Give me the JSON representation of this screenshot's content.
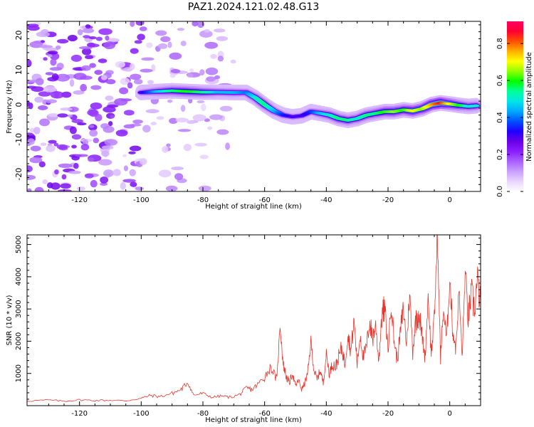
{
  "title": "PAZ1.2024.121.02.48.G13",
  "chart_data": [
    {
      "type": "heatmap",
      "title": "PAZ1.2024.121.02.48.G13",
      "xlabel": "Height of straight line (km)",
      "ylabel": "Frequency (Hz)",
      "xlim": [
        -137,
        10
      ],
      "ylim": [
        -25,
        24
      ],
      "x_ticks": [
        -120,
        -100,
        -80,
        -60,
        -40,
        -20,
        0
      ],
      "y_ticks": [
        -20,
        -10,
        0,
        10,
        20
      ],
      "colorbar": {
        "label": "Normalized spectral amplitude",
        "range": [
          0,
          0.92
        ],
        "ticks": [
          0.0,
          0.2,
          0.4,
          0.6,
          0.8
        ],
        "colormap": [
          "#ffffff",
          "#e9d4ff",
          "#c9a0ff",
          "#a960ff",
          "#8a1eff",
          "#6a00e6",
          "#2000ff",
          "#0050ff",
          "#00a8ff",
          "#00e6e6",
          "#00ff9a",
          "#00ff00",
          "#90ff00",
          "#ffff00",
          "#ffb000",
          "#ff5000",
          "#ff0030",
          "#ff0060"
        ]
      },
      "ridge": {
        "x": [
          -100,
          -95,
          -90,
          -85,
          -80,
          -75,
          -70,
          -66,
          -63,
          -60,
          -57,
          -54,
          -51,
          -48,
          -45,
          -42,
          -39,
          -36,
          -33,
          -30,
          -27,
          -24,
          -21,
          -18,
          -15,
          -12,
          -9,
          -6,
          -3,
          0,
          3,
          6,
          9
        ],
        "y": [
          3.5,
          3.8,
          4.0,
          3.8,
          3.6,
          3.6,
          3.5,
          3.5,
          2.0,
          0.0,
          -1.8,
          -3.0,
          -3.5,
          -3.2,
          -2.0,
          -2.5,
          -3.0,
          -4.0,
          -4.5,
          -4.0,
          -3.0,
          -2.5,
          -2.0,
          -2.0,
          -1.5,
          -1.8,
          -1.2,
          0.0,
          0.5,
          0.2,
          -0.2,
          -0.5,
          -0.3
        ],
        "amplitude": [
          0.3,
          0.45,
          0.55,
          0.6,
          0.55,
          0.45,
          0.45,
          0.4,
          0.5,
          0.55,
          0.45,
          0.35,
          0.3,
          0.3,
          0.35,
          0.45,
          0.5,
          0.55,
          0.55,
          0.5,
          0.55,
          0.55,
          0.6,
          0.65,
          0.6,
          0.7,
          0.65,
          0.75,
          0.85,
          0.7,
          0.6,
          0.5,
          0.5
        ]
      },
      "noise_region_x": [
        -137,
        -70
      ]
    },
    {
      "type": "line",
      "title": "",
      "xlabel": "Height of straight line (km)",
      "ylabel": "SNR (10 * v/v)",
      "xlim": [
        -137,
        10
      ],
      "ylim": [
        0,
        5300
      ],
      "x_ticks": [
        -120,
        -100,
        -80,
        -60,
        -40,
        -20,
        0
      ],
      "y_ticks": [
        1000,
        2000,
        3000,
        4000,
        5000
      ],
      "line_color": "#e8342c",
      "series": [
        {
          "x": [
            -137,
            -130,
            -125,
            -120,
            -115,
            -110,
            -105,
            -100,
            -97,
            -94,
            -90,
            -87,
            -85,
            -83,
            -80,
            -77,
            -74,
            -71,
            -68,
            -66,
            -64,
            -62,
            -60,
            -58,
            -56,
            -55,
            -54,
            -53,
            -52,
            -51,
            -50,
            -49,
            -48,
            -47,
            -46,
            -45,
            -44,
            -43,
            -42,
            -41,
            -40,
            -39,
            -38,
            -37,
            -36,
            -35,
            -34,
            -33,
            -32,
            -31,
            -30,
            -29,
            -28,
            -27,
            -26,
            -25,
            -24,
            -23,
            -22,
            -21,
            -20,
            -19,
            -18,
            -17,
            -16,
            -15,
            -14,
            -13,
            -12,
            -11,
            -10,
            -9,
            -8,
            -7,
            -6,
            -5,
            -4,
            -3,
            -2,
            -1,
            0,
            1,
            2,
            3,
            4,
            5,
            6,
            7,
            8,
            9,
            10
          ],
          "values": [
            150,
            170,
            140,
            180,
            160,
            170,
            150,
            230,
            320,
            280,
            380,
            500,
            720,
            330,
            380,
            260,
            300,
            260,
            350,
            550,
            500,
            680,
            900,
            1200,
            800,
            2550,
            1300,
            900,
            700,
            1000,
            600,
            800,
            500,
            700,
            1000,
            2000,
            1100,
            800,
            1100,
            700,
            1600,
            1000,
            1300,
            1200,
            1500,
            1800,
            1300,
            2200,
            1700,
            2650,
            1300,
            2200,
            1500,
            1800,
            2600,
            2100,
            2500,
            1400,
            2800,
            3000,
            1700,
            3200,
            2000,
            1400,
            2300,
            3000,
            1900,
            3500,
            1700,
            2700,
            2900,
            2200,
            1500,
            3400,
            1600,
            2700,
            5300,
            1500,
            3000,
            2000,
            4000,
            2300,
            1800,
            3600,
            1500,
            4100,
            2700,
            3500,
            3000,
            3900,
            3100
          ]
        }
      ]
    }
  ]
}
